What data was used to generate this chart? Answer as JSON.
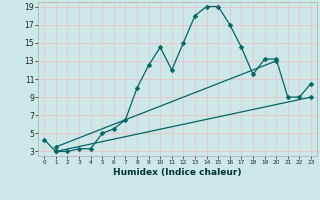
{
  "xlabel": "Humidex (Indice chaleur)",
  "background_color": "#cce8e8",
  "grid_color": "#e8c8c8",
  "line_color": "#006666",
  "xlim": [
    -0.5,
    23.5
  ],
  "ylim": [
    2.5,
    19.5
  ],
  "yticks": [
    3,
    5,
    7,
    9,
    11,
    13,
    15,
    17,
    19
  ],
  "xticks": [
    0,
    1,
    2,
    3,
    4,
    5,
    6,
    7,
    8,
    9,
    10,
    11,
    12,
    13,
    14,
    15,
    16,
    17,
    18,
    19,
    20,
    21,
    22,
    23
  ],
  "line1_x": [
    0,
    1,
    2,
    3,
    4,
    5,
    6,
    7,
    8,
    9,
    10,
    11,
    12,
    13,
    14,
    15,
    16,
    17,
    18,
    19,
    20,
    21,
    22,
    23
  ],
  "line1_y": [
    4.3,
    3.0,
    3.0,
    3.3,
    3.3,
    5.0,
    5.5,
    6.5,
    10.0,
    12.5,
    14.5,
    12.0,
    15.0,
    18.0,
    19.0,
    19.0,
    17.0,
    14.5,
    11.5,
    13.2,
    13.2,
    9.0,
    9.0,
    10.5
  ],
  "line2_x": [
    1,
    20
  ],
  "line2_y": [
    3.5,
    13.0
  ],
  "line3_x": [
    1,
    23
  ],
  "line3_y": [
    3.0,
    9.0
  ],
  "markersize": 2.5,
  "linewidth": 0.9
}
